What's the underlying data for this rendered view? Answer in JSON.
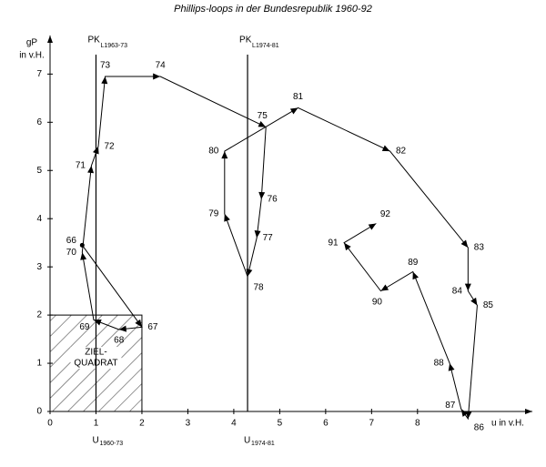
{
  "chart_data": {
    "type": "line",
    "title": "Phillips-loops in der Bundesrepublik 1960-92",
    "ylabel": "gP",
    "ylabel_unit": "in v.H.",
    "xlabel": "u in v.H.",
    "color": "#000000",
    "categories": [
      "66",
      "67",
      "68",
      "69",
      "70",
      "71",
      "72",
      "73",
      "74",
      "75",
      "76",
      "77",
      "78",
      "79",
      "80",
      "81",
      "82",
      "83",
      "84",
      "85",
      "86",
      "87",
      "88",
      "89",
      "90",
      "91",
      "92"
    ],
    "x": [
      0.7,
      2.0,
      1.5,
      0.95,
      0.7,
      0.9,
      1.05,
      1.2,
      2.4,
      4.7,
      4.6,
      4.5,
      4.3,
      3.8,
      3.8,
      5.4,
      7.4,
      9.1,
      9.1,
      9.3,
      9.1,
      8.95,
      8.7,
      7.9,
      7.2,
      6.4,
      7.1
    ],
    "values": [
      3.45,
      1.75,
      1.7,
      1.9,
      3.3,
      5.1,
      5.5,
      6.95,
      6.95,
      5.9,
      4.4,
      3.6,
      2.8,
      4.1,
      5.4,
      6.3,
      5.4,
      3.4,
      2.5,
      2.2,
      -0.15,
      0.05,
      1.0,
      2.9,
      2.5,
      3.5,
      3.9
    ],
    "xlim": [
      0,
      10.5
    ],
    "ylim": [
      0,
      7.8
    ],
    "xticks": [
      0,
      1,
      2,
      3,
      4,
      5,
      6,
      7,
      8
    ],
    "yticks": [
      0,
      1,
      2,
      3,
      4,
      5,
      6,
      7
    ],
    "reference_lines": [
      {
        "x": 1.0,
        "label": "PK",
        "label_sub": "L1963-73",
        "foot": "U",
        "foot_sub": "1960-73"
      },
      {
        "x": 4.3,
        "label": "PK",
        "label_sub": "L1974-81",
        "foot": "U",
        "foot_sub": "1974-81"
      }
    ],
    "target_zone": {
      "xlim": [
        0,
        2
      ],
      "ylim": [
        0,
        2
      ],
      "label": [
        "ZIEL-",
        "QUADRAT"
      ]
    }
  }
}
